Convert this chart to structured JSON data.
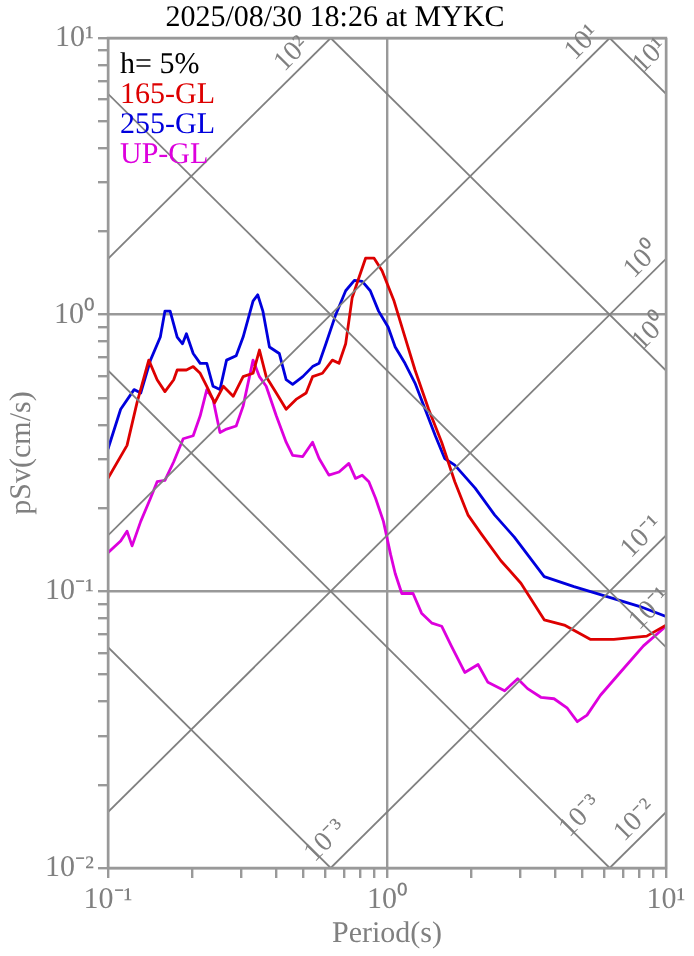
{
  "chart_data": {
    "type": "line",
    "title": "2025/08/30 18:26 at MYKC",
    "xlabel": "Period(s)",
    "ylabel": "pSv(cm/s)",
    "log": "xy",
    "grid": true,
    "legend": "top left",
    "marker": "none",
    "line_style": "solid",
    "xlim": [
      0.1,
      10
    ],
    "ylim": [
      0.01,
      10
    ],
    "xticks": [
      {
        "value": 0.1,
        "label": "10⁻¹"
      },
      {
        "value": 0.2,
        "label": null
      },
      {
        "value": 0.3,
        "label": null
      },
      {
        "value": 0.4,
        "label": null
      },
      {
        "value": 0.5,
        "label": null
      },
      {
        "value": 0.6,
        "label": null
      },
      {
        "value": 0.7,
        "label": null
      },
      {
        "value": 0.8,
        "label": null
      },
      {
        "value": 0.9,
        "label": null
      },
      {
        "value": 1,
        "label": "10⁰"
      },
      {
        "value": 2,
        "label": null
      },
      {
        "value": 3,
        "label": null
      },
      {
        "value": 4,
        "label": null
      },
      {
        "value": 5,
        "label": null
      },
      {
        "value": 6,
        "label": null
      },
      {
        "value": 7,
        "label": null
      },
      {
        "value": 8,
        "label": null
      },
      {
        "value": 9,
        "label": null
      },
      {
        "value": 10,
        "label": "10¹"
      }
    ],
    "yticks": [
      {
        "value": 0.01,
        "label": "10⁻²"
      },
      {
        "value": 0.02,
        "label": null
      },
      {
        "value": 0.03,
        "label": null
      },
      {
        "value": 0.04,
        "label": null
      },
      {
        "value": 0.05,
        "label": null
      },
      {
        "value": 0.06,
        "label": null
      },
      {
        "value": 0.07,
        "label": null
      },
      {
        "value": 0.08,
        "label": null
      },
      {
        "value": 0.09,
        "label": null
      },
      {
        "value": 0.1,
        "label": "10⁻¹"
      },
      {
        "value": 0.2,
        "label": null
      },
      {
        "value": 0.3,
        "label": null
      },
      {
        "value": 0.4,
        "label": null
      },
      {
        "value": 0.5,
        "label": null
      },
      {
        "value": 0.6,
        "label": null
      },
      {
        "value": 0.7,
        "label": null
      },
      {
        "value": 0.8,
        "label": null
      },
      {
        "value": 0.9,
        "label": null
      },
      {
        "value": 1,
        "label": "10⁰"
      },
      {
        "value": 2,
        "label": null
      },
      {
        "value": 3,
        "label": null
      },
      {
        "value": 4,
        "label": null
      },
      {
        "value": 5,
        "label": null
      },
      {
        "value": 6,
        "label": null
      },
      {
        "value": 7,
        "label": null
      },
      {
        "value": 8,
        "label": null
      },
      {
        "value": 9,
        "label": null
      },
      {
        "value": 10,
        "label": "10¹"
      }
    ],
    "annotations": [
      "h= 5%",
      {
        "text": "10²",
        "x": 0.5,
        "y": 7.96
      },
      {
        "text": "10¹",
        "x": 5.5,
        "y": 8.75
      },
      {
        "text": "10¹",
        "x": 8,
        "y": 7.85
      },
      {
        "text": "10⁰",
        "x": 9,
        "y": 1.43
      },
      {
        "text": "10⁰",
        "x": 8,
        "y": 0.785
      },
      {
        "text": "10⁻¹",
        "x": 9,
        "y": 0.143
      },
      {
        "text": "10⁻¹",
        "x": 8,
        "y": 0.0785
      },
      {
        "text": "10⁻³",
        "x": 0.55,
        "y": 0.0114
      },
      {
        "text": "10⁻³",
        "x": 4.5,
        "y": 0.014
      },
      {
        "text": "10⁻²",
        "x": 8.5,
        "y": 0.0135
      }
    ],
    "series": [
      {
        "color": "#808080",
        "x": [
          6.283,
          10
        ],
        "values": [
          10,
          6.283
        ]
      },
      {
        "color": "#808080",
        "x": [
          0.6283,
          10
        ],
        "values": [
          10,
          0.6283
        ]
      },
      {
        "color": "#808080",
        "x": [
          0.1,
          10
        ],
        "values": [
          6.283,
          0.06283
        ]
      },
      {
        "color": "#808080",
        "x": [
          0.1,
          6.283
        ],
        "values": [
          0.6283,
          0.01
        ]
      },
      {
        "color": "#808080",
        "x": [
          0.1,
          0.6283
        ],
        "values": [
          0.06283,
          0.01
        ]
      },
      {
        "color": "#808080",
        "x": [
          0.1,
          0.6283
        ],
        "values": [
          1.592,
          10
        ]
      },
      {
        "color": "#808080",
        "x": [
          0.1,
          6.283
        ],
        "values": [
          0.1592,
          10
        ]
      },
      {
        "color": "#808080",
        "x": [
          0.1,
          10
        ],
        "values": [
          0.01592,
          1.592
        ]
      },
      {
        "color": "#808080",
        "x": [
          0.6283,
          10
        ],
        "values": [
          0.01,
          0.1592
        ]
      },
      {
        "color": "#808080",
        "x": [
          6.283,
          10
        ],
        "values": [
          0.01,
          0.01592
        ]
      },
      {
        "name": "165-GL",
        "color": "#dd0000",
        "x": [
          0.1,
          0.117,
          0.127,
          0.14,
          0.15,
          0.16,
          0.172,
          0.177,
          0.191,
          0.202,
          0.214,
          0.226,
          0.241,
          0.259,
          0.281,
          0.305,
          0.331,
          0.349,
          0.369,
          0.401,
          0.435,
          0.472,
          0.513,
          0.541,
          0.587,
          0.637,
          0.673,
          0.711,
          0.75,
          0.793,
          0.838,
          0.899,
          0.96,
          1.06,
          1.16,
          1.26,
          1.41,
          1.57,
          1.75,
          1.95,
          2.18,
          2.56,
          3.02,
          3.66,
          4.32,
          5.37,
          6.5,
          8.53,
          10
        ],
        "values": [
          0.256,
          0.337,
          0.48,
          0.685,
          0.582,
          0.527,
          0.582,
          0.631,
          0.631,
          0.649,
          0.614,
          0.551,
          0.48,
          0.551,
          0.507,
          0.597,
          0.614,
          0.745,
          0.597,
          0.521,
          0.455,
          0.494,
          0.521,
          0.597,
          0.614,
          0.685,
          0.667,
          0.785,
          1.15,
          1.36,
          1.6,
          1.6,
          1.44,
          1.12,
          0.83,
          0.631,
          0.455,
          0.346,
          0.249,
          0.189,
          0.161,
          0.129,
          0.107,
          0.0789,
          0.0755,
          0.067,
          0.067,
          0.0689,
          0.0755
        ]
      },
      {
        "name": "255-GL",
        "color": "#0000dd",
        "x": [
          0.1,
          0.111,
          0.124,
          0.131,
          0.142,
          0.154,
          0.16,
          0.167,
          0.177,
          0.185,
          0.191,
          0.202,
          0.214,
          0.226,
          0.238,
          0.252,
          0.266,
          0.288,
          0.305,
          0.331,
          0.344,
          0.359,
          0.379,
          0.411,
          0.435,
          0.459,
          0.499,
          0.541,
          0.571,
          0.604,
          0.655,
          0.711,
          0.764,
          0.815,
          0.871,
          0.933,
          1.01,
          1.07,
          1.16,
          1.26,
          1.37,
          1.49,
          1.61,
          1.75,
          2.07,
          2.43,
          2.86,
          3.66,
          4.68,
          6.15,
          8.07,
          10
        ],
        "values": [
          0.327,
          0.455,
          0.536,
          0.521,
          0.685,
          0.83,
          1.03,
          1.03,
          0.83,
          0.785,
          0.853,
          0.724,
          0.667,
          0.667,
          0.551,
          0.536,
          0.685,
          0.711,
          0.83,
          1.12,
          1.18,
          1.03,
          0.764,
          0.724,
          0.582,
          0.56,
          0.597,
          0.649,
          0.667,
          0.785,
          1.0,
          1.22,
          1.33,
          1.32,
          1.22,
          1.03,
          0.9,
          0.764,
          0.667,
          0.566,
          0.455,
          0.365,
          0.302,
          0.286,
          0.236,
          0.189,
          0.157,
          0.113,
          0.104,
          0.0957,
          0.0881,
          0.0811
        ]
      },
      {
        "name": "UP-GL",
        "color": "#dd00dd",
        "x": [
          0.1,
          0.111,
          0.117,
          0.122,
          0.131,
          0.142,
          0.15,
          0.16,
          0.172,
          0.186,
          0.202,
          0.214,
          0.226,
          0.238,
          0.252,
          0.266,
          0.288,
          0.305,
          0.331,
          0.349,
          0.369,
          0.401,
          0.435,
          0.459,
          0.499,
          0.541,
          0.571,
          0.619,
          0.673,
          0.73,
          0.771,
          0.815,
          0.861,
          0.91,
          0.971,
          1.03,
          1.07,
          1.13,
          1.24,
          1.33,
          1.45,
          1.57,
          1.7,
          1.9,
          2.12,
          2.3,
          2.64,
          2.94,
          3.19,
          3.56,
          3.97,
          4.43,
          4.81,
          5.21,
          5.82,
          6.85,
          8.3,
          10
        ],
        "values": [
          0.138,
          0.152,
          0.165,
          0.146,
          0.179,
          0.217,
          0.249,
          0.252,
          0.294,
          0.356,
          0.365,
          0.431,
          0.536,
          0.494,
          0.375,
          0.386,
          0.396,
          0.467,
          0.685,
          0.597,
          0.551,
          0.431,
          0.346,
          0.31,
          0.307,
          0.346,
          0.302,
          0.263,
          0.27,
          0.29,
          0.256,
          0.263,
          0.249,
          0.217,
          0.179,
          0.136,
          0.116,
          0.0982,
          0.0982,
          0.0834,
          0.0767,
          0.0748,
          0.0635,
          0.0509,
          0.0544,
          0.0469,
          0.0437,
          0.0483,
          0.0445,
          0.0414,
          0.0409,
          0.0378,
          0.0338,
          0.0357,
          0.0421,
          0.0509,
          0.0635,
          0.0748
        ]
      }
    ]
  }
}
